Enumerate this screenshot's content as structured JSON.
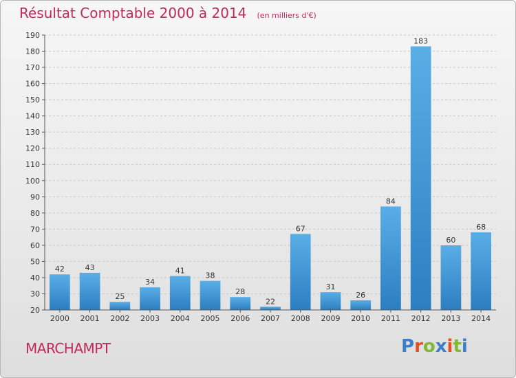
{
  "header": {
    "title": "Résultat Comptable 2000 à 2014",
    "subtitle": "(en milliers d'€)"
  },
  "footer": {
    "commune": "MARCHAMPT",
    "brand": "Proxiti",
    "brand_colors": [
      "#3a7fc8",
      "#e0502a",
      "#7fb83a",
      "#3a7fc8",
      "#e0502a",
      "#7fb83a",
      "#3a7fc8"
    ]
  },
  "colors": {
    "title": "#c02a5a",
    "bar_light": "#5aaee6",
    "bar_dark": "#2c7ec0",
    "grid": "#c8c8c8"
  },
  "chart_data": {
    "type": "bar",
    "title": "Résultat Comptable 2000 à 2014",
    "subtitle": "(en milliers d'€)",
    "categories": [
      "2000",
      "2001",
      "2002",
      "2003",
      "2004",
      "2005",
      "2006",
      "2007",
      "2008",
      "2009",
      "2010",
      "2011",
      "2012",
      "2013",
      "2014"
    ],
    "values": [
      42,
      43,
      25,
      34,
      41,
      38,
      28,
      22,
      67,
      31,
      26,
      84,
      183,
      60,
      68
    ],
    "ylim": [
      20,
      190
    ],
    "yticks": [
      20,
      30,
      40,
      50,
      60,
      70,
      80,
      90,
      100,
      110,
      120,
      130,
      140,
      150,
      160,
      170,
      180,
      190
    ],
    "grid": true,
    "legend": "none"
  }
}
